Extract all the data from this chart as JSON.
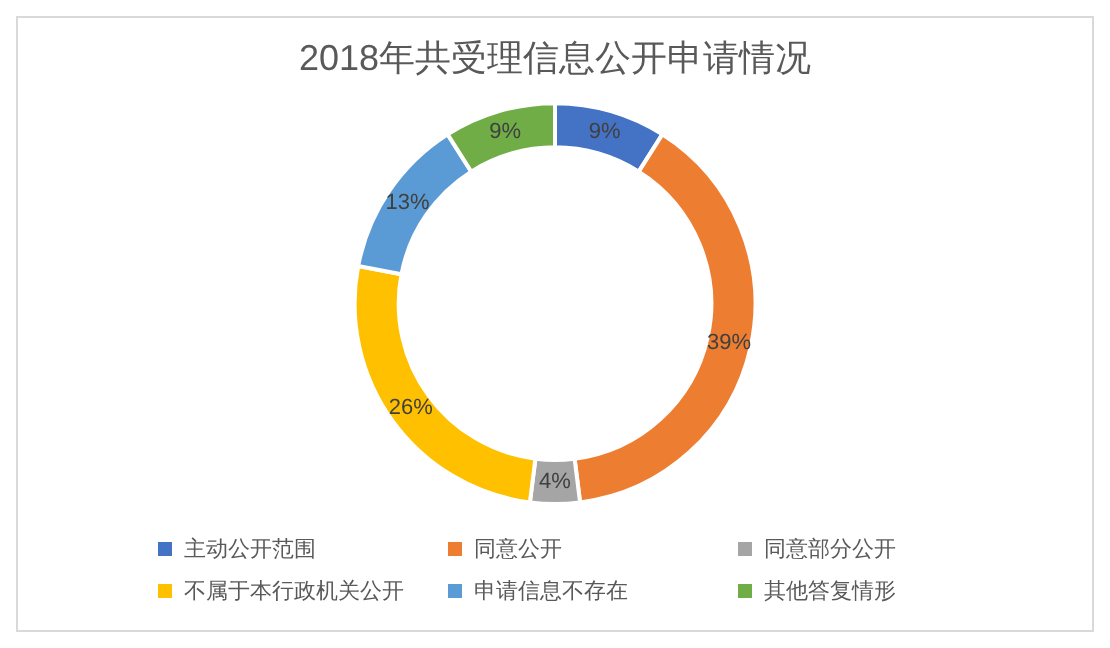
{
  "chart_data": {
    "type": "donut",
    "title": "2018年共受理信息公开申请情况",
    "categories": [
      "主动公开范围",
      "同意公开",
      "同意部分公开",
      "不属于本行政机关公开",
      "申请信息不存在",
      "其他答复情形"
    ],
    "values": [
      9,
      39,
      4,
      26,
      13,
      9
    ],
    "value_labels": [
      "9%",
      "39%",
      "4%",
      "26%",
      "13%",
      "9%"
    ],
    "colors": [
      "#4472c4",
      "#ed7d31",
      "#a5a5a5",
      "#ffc000",
      "#5b9bd5",
      "#70ad47"
    ],
    "legend": "bottom"
  }
}
